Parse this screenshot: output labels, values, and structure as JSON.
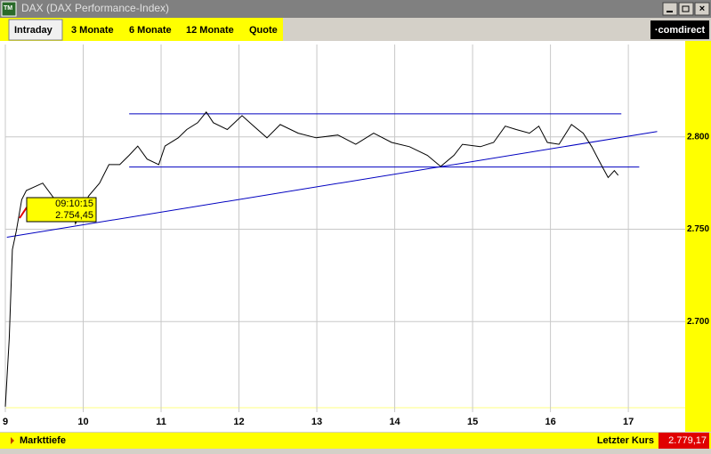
{
  "window": {
    "title": "DAX (DAX Performance-Index)"
  },
  "tabs": [
    "Intraday",
    "3 Monate",
    "6 Monate",
    "12 Monate",
    "Quote"
  ],
  "logo": "·comdirect",
  "chart": {
    "type": "line",
    "color": "#000000",
    "x": [
      9.0,
      9.05,
      9.09,
      9.14,
      9.21,
      9.27,
      9.48,
      9.62,
      9.85,
      9.9,
      10.07,
      10.21,
      10.33,
      10.47,
      10.59,
      10.7,
      10.82,
      10.97,
      11.05,
      11.22,
      11.33,
      11.47,
      11.58,
      11.67,
      11.85,
      12.04,
      12.19,
      12.36,
      12.53,
      12.76,
      12.99,
      13.27,
      13.5,
      13.73,
      13.96,
      14.19,
      14.42,
      14.59,
      14.76,
      14.87,
      15.1,
      15.27,
      15.42,
      15.56,
      15.73,
      15.85,
      15.96,
      16.11,
      16.27,
      16.42,
      16.53,
      16.65,
      16.74,
      16.82,
      16.87
    ],
    "values": [
      2654,
      2691,
      2739,
      2749,
      2766,
      2771,
      2775,
      2767,
      2766,
      2753,
      2768,
      2775,
      2785,
      2785,
      2790,
      2795,
      2788,
      2785,
      2795,
      2799.5,
      2804,
      2807.7,
      2813.5,
      2807.7,
      2804,
      2811.5,
      2805.8,
      2799.5,
      2806.7,
      2802,
      2799.5,
      2801,
      2796,
      2802,
      2797,
      2794.7,
      2790,
      2784,
      2790,
      2796,
      2794.7,
      2797,
      2805.8,
      2804,
      2802,
      2805.8,
      2797,
      2796,
      2806.7,
      2802,
      2794.7,
      2785,
      2778,
      2781.7,
      2779.2
    ],
    "xlim": [
      9,
      17.73
    ],
    "ylim": [
      2651,
      2850
    ],
    "xticks": [
      9,
      10,
      11,
      12,
      13,
      14,
      15,
      16,
      17
    ],
    "yticks": [
      {
        "value": 2700,
        "label": "2.700"
      },
      {
        "value": 2750,
        "label": "2.750"
      },
      {
        "value": 2800,
        "label": "2.800"
      }
    ],
    "grid": true,
    "lines": [
      {
        "color": "#0000c0",
        "x": [
          10.59,
          16.91
        ],
        "y": [
          2812.5,
          2812.5
        ]
      },
      {
        "color": "#0000c0",
        "x": [
          10.59,
          17.14
        ],
        "y": [
          2783.7,
          2783.7
        ]
      },
      {
        "color": "#0000c0",
        "x": [
          9.02,
          17.37
        ],
        "y": [
          2745.7,
          2802.9
        ]
      }
    ],
    "tooltip": {
      "time": "09:10:15",
      "price": "2.754,45"
    }
  },
  "footer": {
    "left": "Markttiefe",
    "right_label": "Letzter Kurs",
    "right_value": "2.779,17"
  }
}
